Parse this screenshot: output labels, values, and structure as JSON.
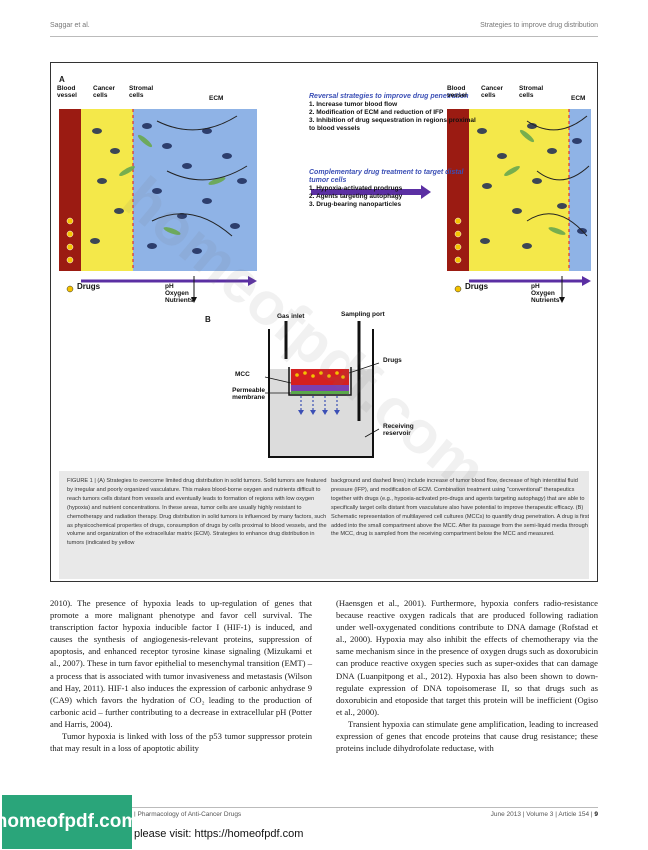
{
  "header": {
    "left": "Saggar et al.",
    "right": "Strategies to improve drug distribution"
  },
  "figure": {
    "panel_a_label": "A",
    "panel_b_label": "B",
    "left_labels": {
      "blood_vessel": "Blood vessel",
      "cancer_cells": "Cancer cells",
      "stromal_cells": "Stromal cells",
      "ecm": "ECM",
      "drugs": "Drugs",
      "gradient": "pH\nOxygen\nNutrients"
    },
    "right_labels": {
      "blood_vessel": "Blood vessel",
      "cancer_cells": "Cancer cells",
      "stromal_cells": "Stromal cells",
      "ecm": "ECM",
      "drugs": "Drugs",
      "gradient": "pH\nOxygen\nNutrients"
    },
    "reversal_title": "Reversal strategies to improve drug penetration",
    "reversal_items": [
      "1. Increase tumor blood flow",
      "2. Modification of ECM and reduction of IFP",
      "3. Inhibition of drug sequestration in regions proximal to blood vessels"
    ],
    "complementary_title": "Complementary drug treatment to target distal tumor cells",
    "complementary_items": [
      "1. Hypoxia-activated prodrugs",
      "2. Agents targeting autophagy",
      "3. Drug-bearing nanoparticles"
    ],
    "panel_b": {
      "gas_inlet": "Gas inlet",
      "sampling_port": "Sampling port",
      "drugs": "Drugs",
      "mcc": "MCC",
      "permeable_membrane": "Permeable membrane",
      "receiving_reservoir": "Receiving reservoir"
    },
    "caption_left": "FIGURE 1 | (A) Strategies to overcome limited drug distribution in solid tumors. Solid tumors are featured by irregular and poorly organized vasculature. This makes blood-borne oxygen and nutrients difficult to reach tumors cells distant from vessels and eventually leads to formation of regions with low oxygen (hypoxia) and nutrient concentrations. In these areas, tumor cells are usually highly resistant to chemotherapy and radiation therapy. Drug distribution in solid tumors is influenced by many factors, such as physicochemical properties of drugs, consumption of drugs by cells proximal to blood vessels, and the volume and organization of the extracellular matrix (ECM). Strategies to enhance drug distribution in tumors (indicated by yellow",
    "caption_right": "background and dashed lines) include increase of tumor blood flow, decrease of high interstitial fluid pressure (IFP), and modification of ECM. Combination treatment using \"conventional\" therapeutics together with drugs (e.g., hypoxia-activated pro-drugs and agents targeting autophagy) that are able to specifically target cells distant from vasculature also have potential to improve therapeutic efficacy. (B) Schematic representation of multilayered cell cultures (MCCs) to quantify drug penetration. A drug is first added into the small compartment above the MCC. After its passage from the semi-liquid media through the MCC, drug is sampled from the receiving compartment below the MCC and measured."
  },
  "body_left": [
    "2010). The presence of hypoxia leads to up-regulation of genes that promote a more malignant phenotype and favor cell survival. The transcription factor hypoxia inducible factor I (HIF-1) is induced, and causes the synthesis of angiogenesis-relevant proteins, suppression of apoptosis, and enhanced receptor tyrosine kinase signaling (Mizukami et al., 2007). These in turn favor epithelial to mesenchymal transition (EMT) – a process that is associated with tumor invasiveness and metastasis (Wilson and Hay, 2011). HIF-1 also induces the expression of carbonic anhydrase 9 (CA9) which favors the hydration of CO₂ leading to the production of carbonic acid – further contributing to a decrease in extracellular pH (Potter and Harris, 2004).",
    "Tumor hypoxia is linked with loss of the p53 tumor suppressor protein that may result in a loss of apoptotic ability"
  ],
  "body_right": [
    "(Haensgen et al., 2001). Furthermore, hypoxia confers radio-resistance because reactive oxygen radicals that are produced following radiation under well-oxygenated conditions contribute to DNA damage (Rofstad et al., 2000). Hypoxia may also inhibit the effects of chemotherapy via the same mechanism since in the presence of oxygen drugs such as doxorubicin can produce reactive oxygen species such as super-oxides that can damage DNA (Luanpitpong et al., 2012). Hypoxia has also been shown to down-regulate expression of DNA topoisomerase II, so that drugs such as doxorubicin and etoposide that target this protein will be inefficient (Ogiso et al., 2000).",
    "Transient hypoxia can stimulate gene amplification, leading to increased expression of genes that encode proteins that cause drug resistance; these proteins include dihydrofolate reductase, with"
  ],
  "footer": {
    "left": "| Pharmacology of Anti-Cancer Drugs",
    "right_text": "June 2013 | Volume 3 | Article 154 |",
    "page": "9"
  },
  "brand": {
    "logo": "homeofpdf.com",
    "visit": "please visit: https://homeofpdf.com"
  },
  "colors": {
    "blood_vessel": "#9b1b12",
    "yellow_zone": "#f4e84a",
    "cell_blue": "#8fb3e6",
    "arrow_purple": "#5b2fa3",
    "brand_green": "#2aa57a",
    "strategy_blue": "#3b4fb5"
  }
}
